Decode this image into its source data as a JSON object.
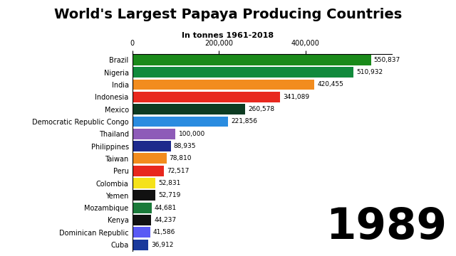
{
  "chart_data": {
    "type": "bar",
    "orientation": "horizontal",
    "title": "World's Largest Papaya Producing Countries",
    "subtitle": "In tonnes 1961-2018",
    "annotations": [
      "1989"
    ],
    "categories": [
      "Brazil",
      "Nigeria",
      "India",
      "Indonesia",
      "Mexico",
      "Democratic Republic Congo",
      "Thailand",
      "Philippines",
      "Taiwan",
      "Peru",
      "Colombia",
      "Yemen",
      "Mozambique",
      "Kenya",
      "Dominican Republic",
      "Cuba"
    ],
    "values": [
      550837,
      510932,
      420455,
      341089,
      260578,
      221856,
      100000,
      88935,
      78810,
      72517,
      52831,
      52719,
      44681,
      44237,
      41586,
      36912
    ],
    "value_labels": [
      "550,837",
      "510,932",
      "420,455",
      "341,089",
      "260,578",
      "221,856",
      "100,000",
      "88,935",
      "78,810",
      "72,517",
      "52,831",
      "52,719",
      "44,681",
      "44,237",
      "41,586",
      "36,912"
    ],
    "colors": [
      "#1a8a1a",
      "#118a3c",
      "#f28c1e",
      "#e8281e",
      "#0d3b22",
      "#2a8ce0",
      "#8e5bb8",
      "#1d2a8c",
      "#f28c1e",
      "#e8281e",
      "#f5e21a",
      "#111111",
      "#1a7a3a",
      "#111111",
      "#5a5af5",
      "#1a3a9c"
    ],
    "xlim": [
      0,
      600000
    ],
    "xticks": [
      {
        "value": 0,
        "label": "0"
      },
      {
        "value": 200000,
        "label": "200,000"
      },
      {
        "value": 400000,
        "label": "400,000"
      }
    ],
    "data_labels": true,
    "grid": false
  }
}
